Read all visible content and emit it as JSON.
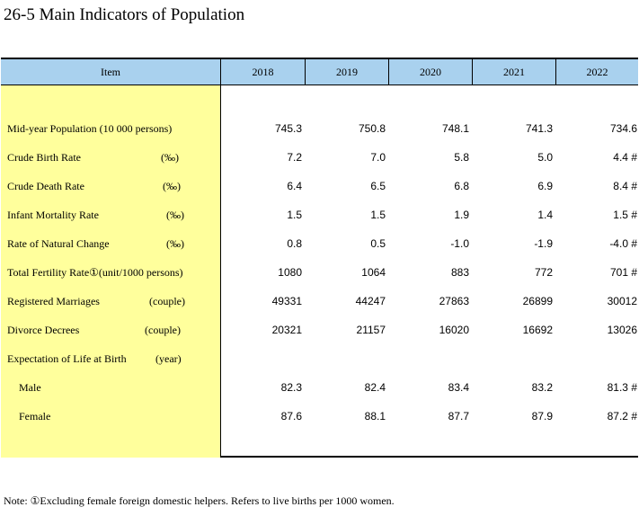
{
  "title": "26-5  Main Indicators of Population",
  "header": {
    "item": "Item",
    "years": [
      "2018",
      "2019",
      "2020",
      "2021",
      "2022"
    ]
  },
  "rows": [
    {
      "label": "Mid-year Population (10 000 persons)",
      "unit": "",
      "values": [
        "745.3",
        "750.8",
        "748.1",
        "741.3",
        "734.6"
      ]
    },
    {
      "label": "Crude Birth Rate",
      "unit": "(‰)",
      "values": [
        "7.2",
        "7.0",
        "5.8",
        "5.0",
        "4.4 #"
      ]
    },
    {
      "label": "Crude Death Rate",
      "unit": "(‰)",
      "values": [
        "6.4",
        "6.5",
        "6.8",
        "6.9",
        "8.4 #"
      ]
    },
    {
      "label": "Infant Mortality Rate",
      "unit": "(‰)",
      "values": [
        "1.5",
        "1.5",
        "1.9",
        "1.4",
        "1.5 #"
      ]
    },
    {
      "label": "Rate of Natural Change",
      "unit": "(‰)",
      "values": [
        "0.8",
        "0.5",
        "-1.0",
        "-1.9",
        "-4.0 #"
      ]
    },
    {
      "label": "Total Fertility Rate①(unit/1000 persons)",
      "unit": "",
      "values": [
        "1080",
        "1064",
        "883",
        "772",
        "701 #"
      ]
    },
    {
      "label": "Registered Marriages",
      "unit": "(couple)",
      "values": [
        "49331",
        "44247",
        "27863",
        "26899",
        "30012"
      ]
    },
    {
      "label": "Divorce Decrees",
      "unit": "(couple)",
      "values": [
        "20321",
        "21157",
        "16020",
        "16692",
        "13026"
      ]
    },
    {
      "label": "Expectation of Life at Birth",
      "unit": "(year)",
      "values": [
        "",
        "",
        "",
        "",
        ""
      ]
    },
    {
      "label": "Male",
      "unit": "",
      "values": [
        "82.3",
        "82.4",
        "83.4",
        "83.2",
        "81.3 #"
      ]
    },
    {
      "label": "Female",
      "unit": "",
      "values": [
        "87.6",
        "88.1",
        "87.7",
        "87.9",
        "87.2 #"
      ]
    }
  ],
  "note": "Note:   ①Excluding female foreign domestic helpers. Refers to live births per 1000 women."
}
